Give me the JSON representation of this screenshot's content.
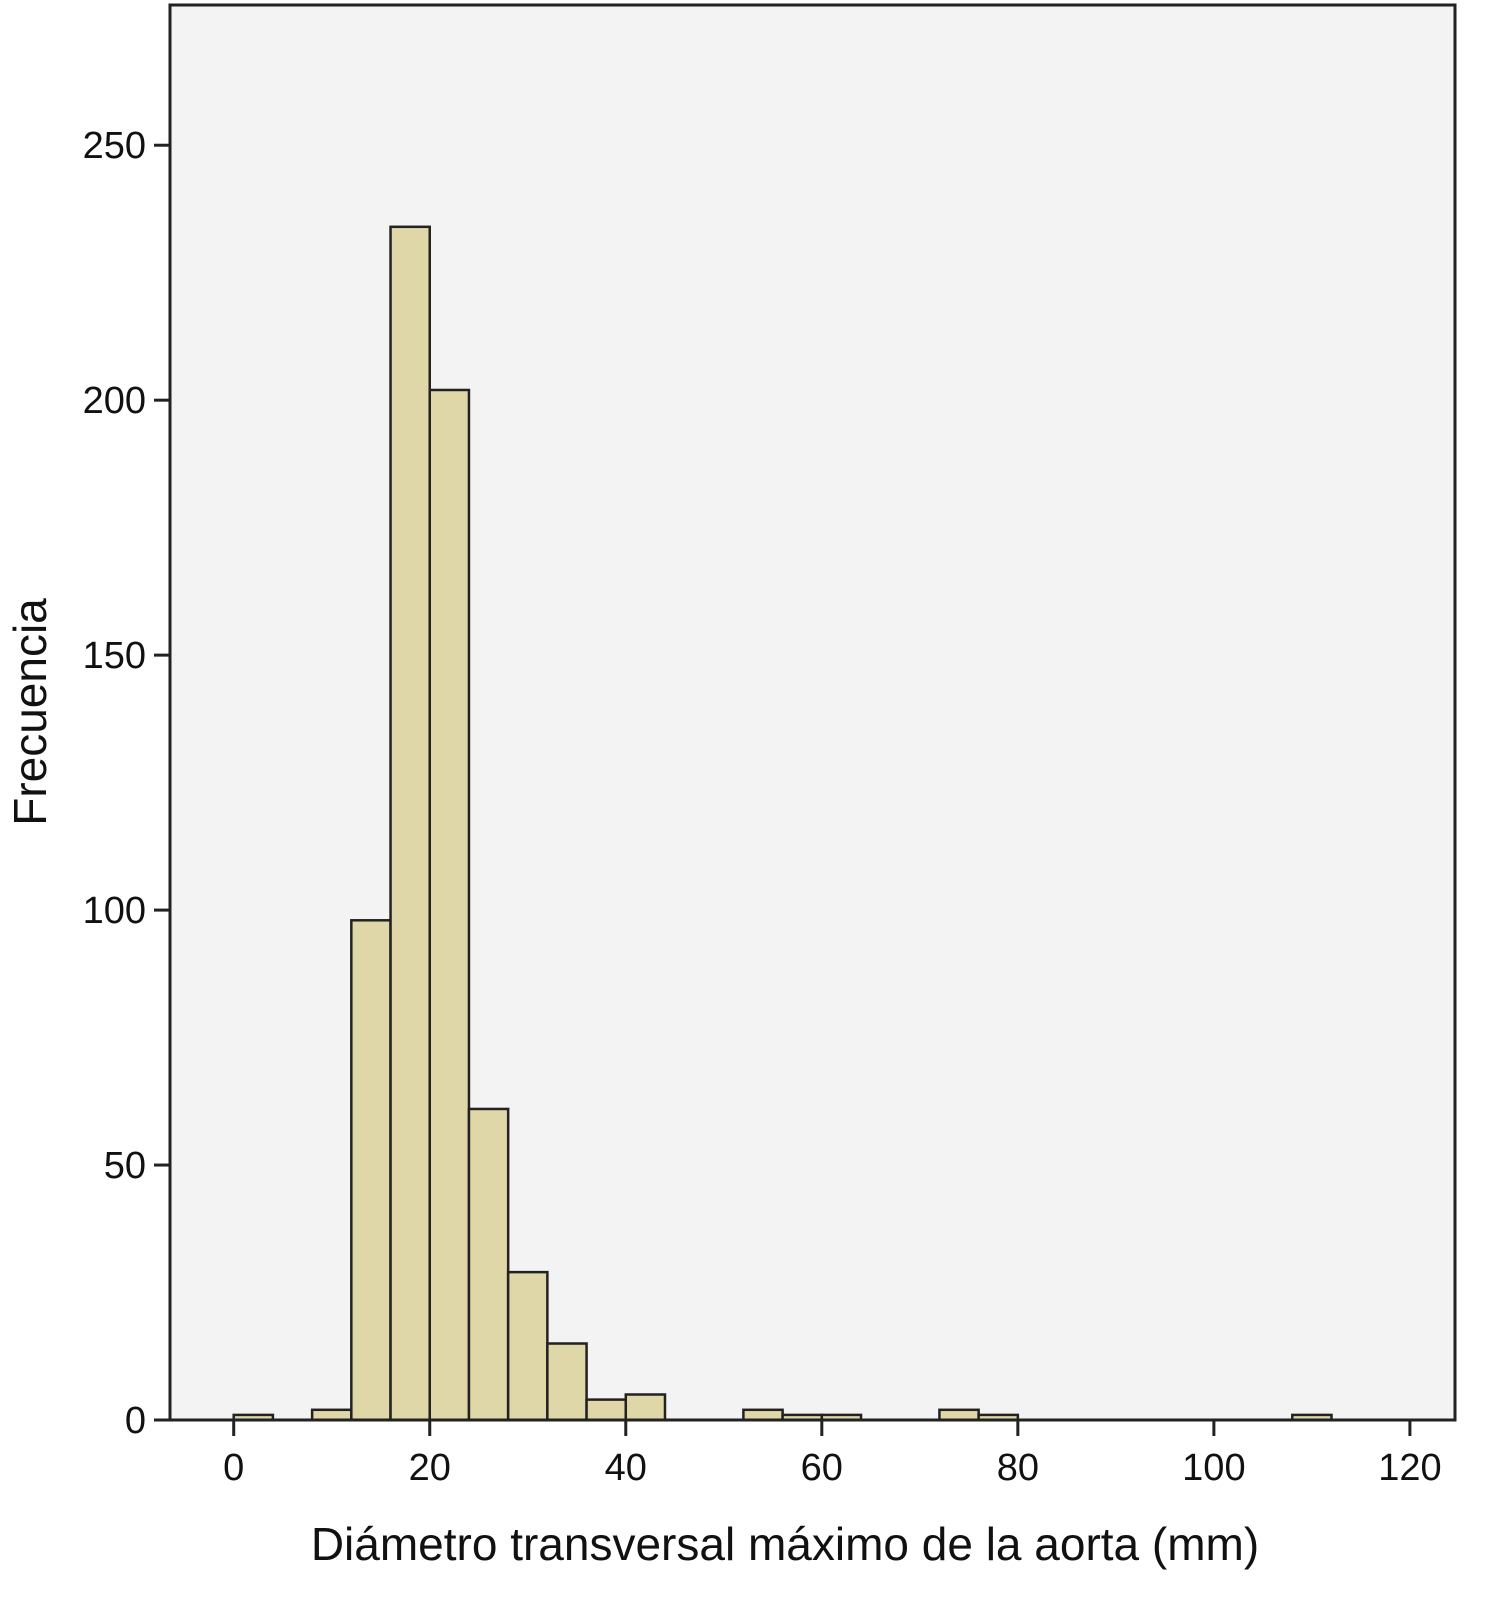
{
  "chart_data": {
    "type": "histogram",
    "xlabel": "Diámetro transversal máximo de la aorta (mm)",
    "ylabel": "Frecuencia",
    "bins": [
      0,
      4,
      8,
      12,
      16,
      20,
      24,
      28,
      32,
      36,
      40,
      44,
      48,
      52,
      56,
      60,
      64,
      68,
      72,
      76,
      80,
      84,
      88,
      92,
      96,
      100,
      104,
      108,
      112
    ],
    "values": [
      1,
      0,
      2,
      98,
      234,
      202,
      61,
      29,
      15,
      4,
      5,
      0,
      0,
      2,
      1,
      1,
      0,
      0,
      2,
      1,
      0,
      0,
      0,
      0,
      0,
      0,
      0,
      1
    ],
    "color": "#dfd7a8",
    "xlim": [
      -6.5,
      124.6
    ],
    "xticks": [
      0,
      20,
      40,
      60,
      80,
      100,
      120
    ],
    "ylim": [
      0,
      277.5
    ],
    "yticks": [
      0,
      50,
      100,
      150,
      200,
      250
    ],
    "grid": false
  }
}
